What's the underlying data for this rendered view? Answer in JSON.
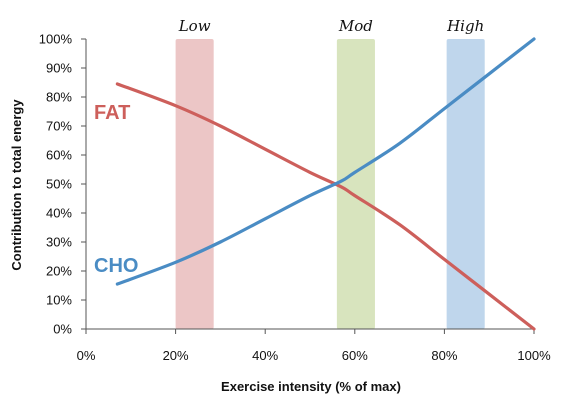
{
  "chart_data": {
    "type": "line",
    "title": "",
    "xlabel": "Exercise intensity (% of max)",
    "ylabel": "Contribution to total energy",
    "xlim": [
      0,
      100
    ],
    "ylim": [
      0,
      100
    ],
    "x_ticks": [
      0,
      20,
      40,
      60,
      80,
      100
    ],
    "y_ticks": [
      0,
      10,
      20,
      30,
      40,
      50,
      60,
      70,
      80,
      90,
      100
    ],
    "x_tick_labels": [
      "0%",
      "20%",
      "40%",
      "60%",
      "80%",
      "100%"
    ],
    "y_tick_labels": [
      "0%",
      "10%",
      "20%",
      "30%",
      "40%",
      "50%",
      "60%",
      "70%",
      "80%",
      "90%",
      "100%"
    ],
    "grid": false,
    "bands": [
      {
        "label": "Low",
        "x_start": 20,
        "x_end": 28.5,
        "color": "#e6b3b3"
      },
      {
        "label": "Mod",
        "x_start": 56,
        "x_end": 64.5,
        "color": "#cbdba8"
      },
      {
        "label": "High",
        "x_start": 80.5,
        "x_end": 89,
        "color": "#a9c8e6"
      }
    ],
    "series": [
      {
        "name": "FAT",
        "color": "#cd5f5b",
        "x": [
          7,
          20,
          30,
          40,
          50,
          57,
          60,
          70,
          80,
          90,
          100
        ],
        "y": [
          84.5,
          77,
          70,
          62,
          54,
          49,
          46,
          36,
          24,
          12,
          0
        ]
      },
      {
        "name": "CHO",
        "color": "#4a8cc4",
        "x": [
          7,
          20,
          30,
          40,
          50,
          57,
          60,
          70,
          80,
          90,
          100
        ],
        "y": [
          15.5,
          23,
          30,
          38,
          46,
          51,
          54,
          64,
          76,
          88,
          100
        ]
      }
    ]
  }
}
